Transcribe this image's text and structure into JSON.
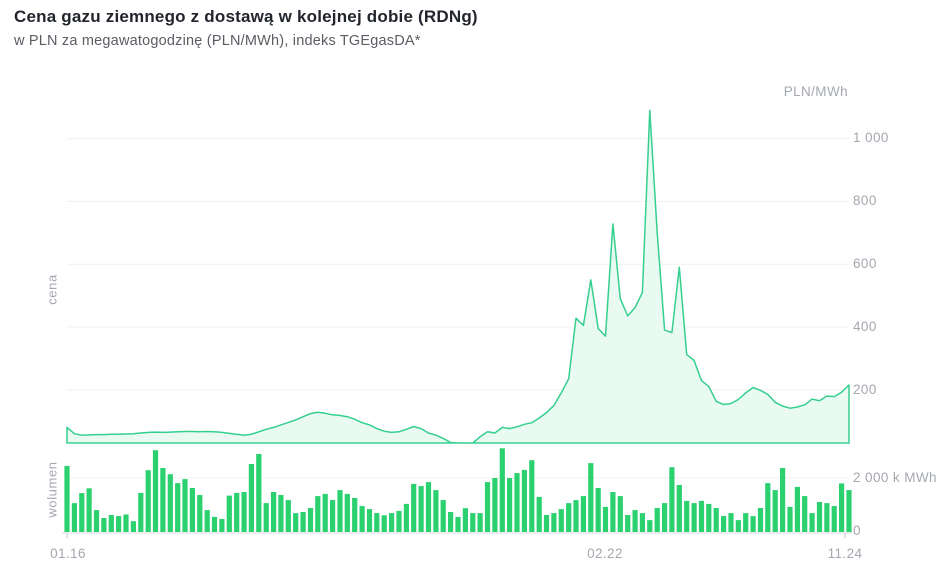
{
  "header": {
    "title": "Cena gazu ziemnego z dostawą w kolejnej dobie (RDNg)",
    "subtitle": "w PLN za megawatogodzinę (PLN/MWh), indeks TGEgasDA*"
  },
  "axes": {
    "price_unit": "PLN/MWh",
    "price_ticks": [
      "1 000",
      "800",
      "600",
      "400",
      "200"
    ],
    "volume_ticks": [
      "2 000 k MWh",
      "0"
    ],
    "x_ticks": [
      "01.16",
      "02.22",
      "11.24"
    ],
    "left_labels": {
      "price": "cena",
      "volume": "wolumen"
    }
  },
  "colors": {
    "line": "#35cf8e",
    "area_fill": "#e9faf2",
    "bar": "#2bd06f",
    "gridline": "#f0f0f1",
    "baseline": "#d9dbdf",
    "tick": "#c6c9ce",
    "title": "#23252d",
    "subtitle": "#5a5d64",
    "axis_text": "#a4a8af"
  },
  "chart_data": [
    {
      "type": "area",
      "title": "cena",
      "ylabel": "PLN/MWh",
      "start_month": "01.2016",
      "end_month": "11.2024",
      "x_tick_labels": [
        "01.16",
        "02.22",
        "11.24"
      ],
      "ylim": [
        0,
        1150
      ],
      "y_ticks": [
        200,
        400,
        600,
        800,
        1000
      ],
      "grid": true,
      "series": [
        {
          "name": "cena",
          "unit": "PLN/MWh",
          "interval": "monthly",
          "values": [
            80,
            60,
            55,
            56,
            57,
            57,
            58,
            58,
            59,
            60,
            62,
            64,
            65,
            64,
            65,
            66,
            67,
            67,
            66,
            67,
            66,
            64,
            61,
            58,
            55,
            58,
            66,
            74,
            80,
            88,
            96,
            104,
            114,
            124,
            128,
            125,
            120,
            118,
            114,
            106,
            95,
            88,
            76,
            68,
            64,
            66,
            74,
            83,
            76,
            62,
            55,
            45,
            32,
            28,
            26,
            28,
            50,
            66,
            62,
            80,
            76,
            82,
            90,
            95,
            110,
            127,
            150,
            190,
            235,
            428,
            405,
            550,
            395,
            371,
            728,
            490,
            435,
            462,
            510,
            1090,
            700,
            390,
            382,
            590,
            312,
            293,
            229,
            210,
            163,
            153,
            156,
            169,
            190,
            207,
            198,
            185,
            160,
            148,
            141,
            145,
            152,
            170,
            165,
            180,
            178,
            192,
            215
          ]
        }
      ]
    },
    {
      "type": "bar",
      "title": "wolumen",
      "unit": "k MWh",
      "start_month": "01.2016",
      "end_month": "11.2024",
      "ylim": [
        0,
        3200
      ],
      "y_ticks": [
        0,
        2000
      ],
      "values": [
        2450,
        1070,
        1440,
        1620,
        810,
        520,
        630,
        590,
        650,
        400,
        1450,
        2290,
        3030,
        2370,
        2140,
        1810,
        1960,
        1630,
        1370,
        810,
        560,
        480,
        1350,
        1450,
        1480,
        2520,
        2890,
        1070,
        1480,
        1370,
        1180,
        700,
        740,
        890,
        1330,
        1410,
        1180,
        1550,
        1410,
        1260,
        960,
        850,
        700,
        620,
        700,
        780,
        1040,
        1780,
        1700,
        1850,
        1550,
        1180,
        740,
        560,
        880,
        700,
        700,
        1850,
        2000,
        3100,
        2000,
        2180,
        2300,
        2660,
        1300,
        630,
        700,
        850,
        1070,
        1180,
        1330,
        2550,
        1630,
        930,
        1480,
        1330,
        630,
        810,
        700,
        440,
        890,
        1070,
        2400,
        1740,
        1150,
        1070,
        1150,
        1040,
        890,
        590,
        700,
        440,
        700,
        590,
        890,
        1810,
        1550,
        2370,
        930,
        1670,
        1330,
        700,
        1110,
        1070,
        960,
        1800,
        1550
      ]
    }
  ]
}
